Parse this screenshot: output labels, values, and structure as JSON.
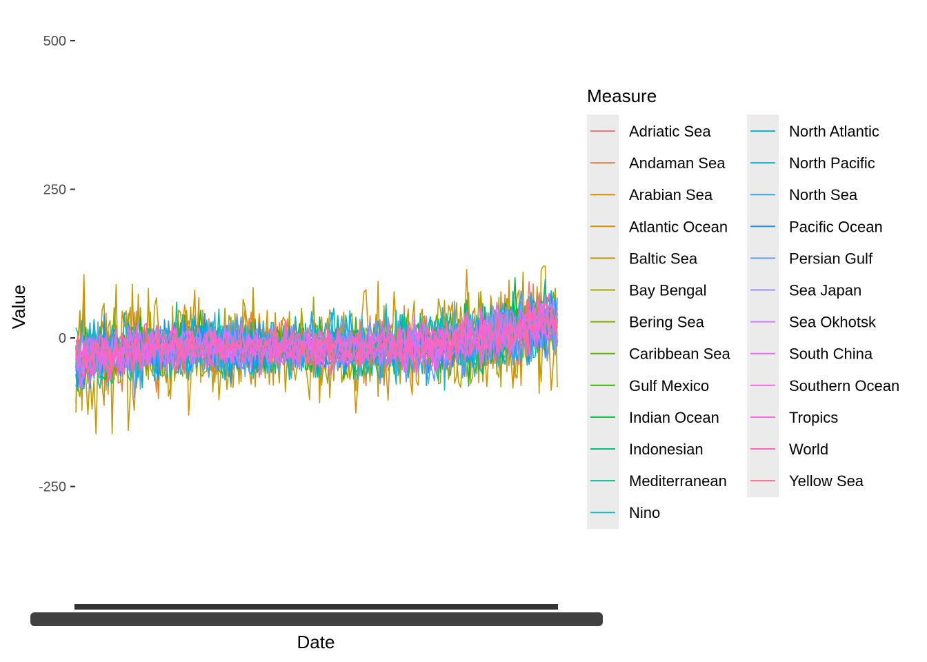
{
  "chart_data": {
    "type": "line",
    "title": "",
    "xlabel": "Date",
    "ylabel": "Value",
    "ylim": [
      -400,
      520
    ],
    "yticks": [
      {
        "value": 500,
        "label": "500"
      },
      {
        "value": 250,
        "label": "250"
      },
      {
        "value": 0,
        "label": "0"
      },
      {
        "value": -250,
        "label": "-250"
      }
    ],
    "x_tick_labels_note": "",
    "grid": false,
    "legend_position": "right",
    "legend_title": "Measure",
    "series": [
      {
        "name": "Adriatic Sea",
        "color": "#F8766D"
      },
      {
        "name": "Andaman Sea",
        "color": "#EF7F49"
      },
      {
        "name": "Arabian Sea",
        "color": "#E58700"
      },
      {
        "name": "Atlantic Ocean",
        "color": "#D39200"
      },
      {
        "name": "Baltic Sea",
        "color": "#C09B00"
      },
      {
        "name": "Bay Bengal",
        "color": "#A3A500"
      },
      {
        "name": "Bering Sea",
        "color": "#7CAE00"
      },
      {
        "name": "Caribbean Sea",
        "color": "#5BB300"
      },
      {
        "name": "Gulf Mexico",
        "color": "#39B600"
      },
      {
        "name": "Indian Ocean",
        "color": "#00BA38"
      },
      {
        "name": "Indonesian",
        "color": "#00BF7D"
      },
      {
        "name": "Mediterranean",
        "color": "#00C19C"
      },
      {
        "name": "Nino",
        "color": "#00BFC4"
      },
      {
        "name": "North Atlantic",
        "color": "#00B9E3"
      },
      {
        "name": "North Pacific",
        "color": "#00B0F6"
      },
      {
        "name": "North Sea",
        "color": "#35A2FF"
      },
      {
        "name": "Pacific Ocean",
        "color": "#1F8FFF"
      },
      {
        "name": "Persian Gulf",
        "color": "#619CFF"
      },
      {
        "name": "Sea Japan",
        "color": "#9590FF"
      },
      {
        "name": "Sea Okhotsk",
        "color": "#C77CFF"
      },
      {
        "name": "South China",
        "color": "#E76BF3"
      },
      {
        "name": "Southern Ocean",
        "color": "#F564E3"
      },
      {
        "name": "Tropics",
        "color": "#FA62DB"
      },
      {
        "name": "World",
        "color": "#FF61C3"
      },
      {
        "name": "Yellow Sea",
        "color": "#FF6C91"
      }
    ]
  }
}
